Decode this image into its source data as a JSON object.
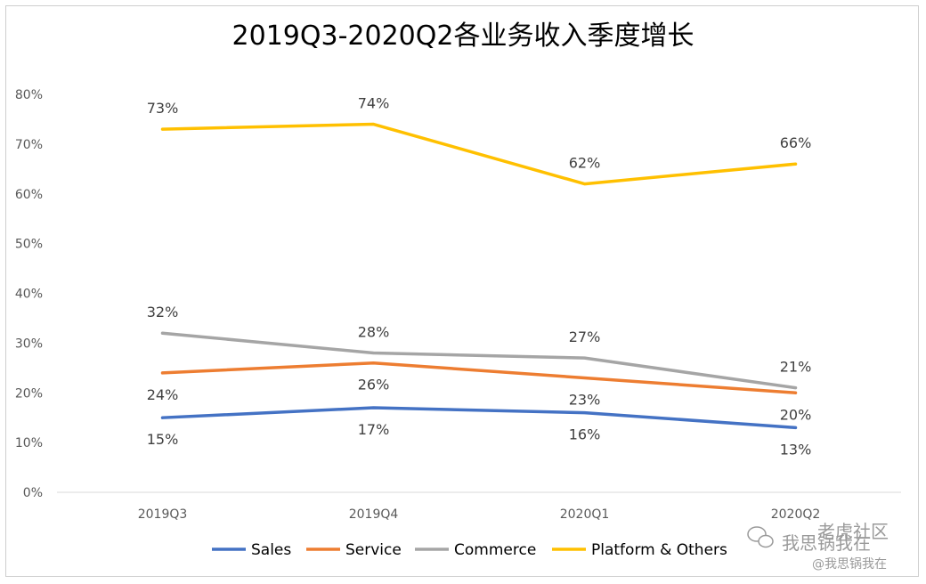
{
  "chart_data": {
    "type": "line",
    "title": "2019Q3-2020Q2各业务收入季度增长",
    "xlabel": "",
    "ylabel": "",
    "categories": [
      "2019Q3",
      "2019Q4",
      "2020Q1",
      "2020Q2"
    ],
    "ylim": [
      0,
      80
    ],
    "yticks": [
      "0%",
      "10%",
      "20%",
      "30%",
      "40%",
      "50%",
      "60%",
      "70%",
      "80%"
    ],
    "grid": false,
    "legend_position": "bottom",
    "series": [
      {
        "name": "Sales",
        "color": "#4472C4",
        "values": [
          15,
          17,
          16,
          13
        ],
        "labels": [
          "15%",
          "17%",
          "16%",
          "13%"
        ]
      },
      {
        "name": "Service",
        "color": "#ED7D31",
        "values": [
          24,
          26,
          23,
          20
        ],
        "labels": [
          "24%",
          "26%",
          "23%",
          "20%"
        ]
      },
      {
        "name": "Commerce",
        "color": "#A5A5A5",
        "values": [
          32,
          28,
          27,
          21
        ],
        "labels": [
          "32%",
          "28%",
          "27%",
          "21%"
        ]
      },
      {
        "name": "Platform & Others",
        "color": "#FFC000",
        "values": [
          73,
          74,
          62,
          66
        ],
        "labels": [
          "73%",
          "74%",
          "62%",
          "66%"
        ]
      }
    ]
  },
  "watermark": {
    "line1": "老虎社区",
    "line2": "我思锅我在",
    "line3": "@我思锅我在"
  }
}
